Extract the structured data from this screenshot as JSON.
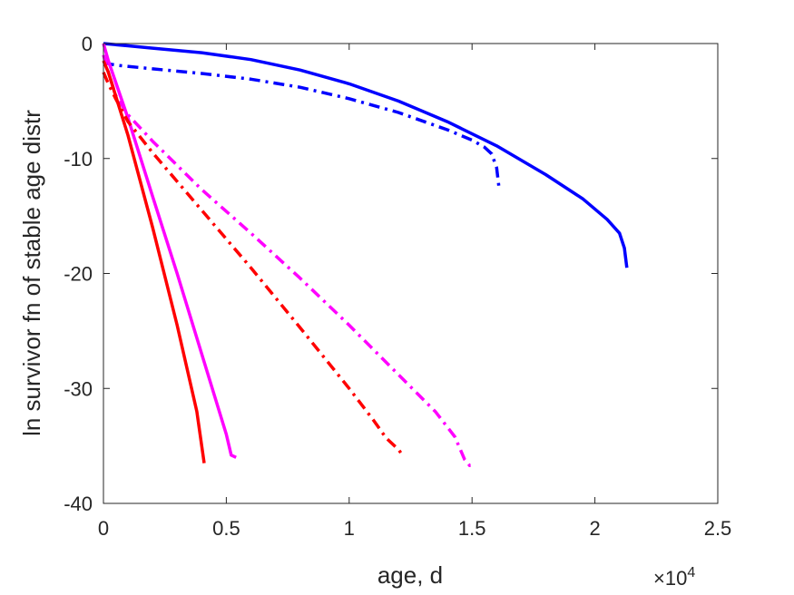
{
  "chart_data": {
    "type": "line",
    "title": "",
    "xlabel": "age, d",
    "ylabel": "ln survivor fn of stable age distr",
    "x_multiplier_label": {
      "base": "×10",
      "exponent": "4"
    },
    "xlim": [
      0,
      25000
    ],
    "ylim": [
      -40,
      0
    ],
    "xticks": [
      0,
      5000,
      10000,
      15000,
      20000,
      25000
    ],
    "xtick_labels": [
      "0",
      "0.5",
      "1",
      "1.5",
      "2",
      "2.5"
    ],
    "yticks": [
      0,
      -10,
      -20,
      -30,
      -40
    ],
    "ytick_labels": [
      "0",
      "-10",
      "-20",
      "-30",
      "-40"
    ],
    "grid": false,
    "legend": "none",
    "series": [
      {
        "color": "#0000ff",
        "style": "solid",
        "x": [
          0,
          1000,
          2000,
          4000,
          6000,
          8000,
          10000,
          12000,
          14000,
          16000,
          18000,
          19500,
          20500,
          21000,
          21200,
          21300
        ],
        "y": [
          0,
          -0.2,
          -0.4,
          -0.8,
          -1.4,
          -2.3,
          -3.5,
          -5.0,
          -6.8,
          -8.9,
          -11.4,
          -13.5,
          -15.3,
          -16.5,
          -17.8,
          -19.5
        ]
      },
      {
        "color": "#0000ff",
        "style": "dashdot",
        "x": [
          0,
          300,
          600,
          2000,
          4000,
          6000,
          8000,
          10000,
          12000,
          14000,
          15000,
          15500,
          15800,
          16000,
          16100
        ],
        "y": [
          -1.6,
          -1.8,
          -1.9,
          -2.2,
          -2.6,
          -3.1,
          -3.8,
          -4.8,
          -6.0,
          -7.5,
          -8.4,
          -9.0,
          -9.6,
          -10.8,
          -12.6
        ]
      },
      {
        "color": "#ff00ff",
        "style": "solid",
        "x": [
          0,
          200,
          1000,
          2000,
          3000,
          4000,
          5000,
          5200,
          5400
        ],
        "y": [
          0,
          -1.5,
          -6.5,
          -13.3,
          -20.0,
          -27.0,
          -34.0,
          -35.8,
          -36.0
        ]
      },
      {
        "color": "#ff00ff",
        "style": "dashdot",
        "x": [
          0,
          200,
          500,
          1000,
          2000,
          4000,
          6000,
          8000,
          10000,
          12000,
          13500,
          14300,
          14700,
          14900,
          15100
        ],
        "y": [
          -1.0,
          -2.5,
          -4.5,
          -6.2,
          -8.5,
          -12.7,
          -16.5,
          -20.4,
          -24.5,
          -28.8,
          -32.0,
          -34.2,
          -36.2,
          -36.7,
          -36.7
        ]
      },
      {
        "color": "#ff0000",
        "style": "solid",
        "x": [
          0,
          200,
          1000,
          2000,
          3000,
          3800,
          4000,
          4100
        ],
        "y": [
          -1.5,
          -2.5,
          -8.0,
          -16.0,
          -24.5,
          -32.0,
          -35.0,
          -36.5
        ]
      },
      {
        "color": "#ff0000",
        "style": "dashdot",
        "x": [
          0,
          200,
          500,
          1000,
          2000,
          4000,
          6000,
          8000,
          10000,
          11000,
          11500,
          11800,
          12000,
          12200
        ],
        "y": [
          -2.5,
          -3.5,
          -4.8,
          -6.8,
          -9.5,
          -14.5,
          -19.5,
          -24.7,
          -30.0,
          -32.8,
          -34.3,
          -34.9,
          -35.3,
          -35.9
        ]
      }
    ]
  }
}
